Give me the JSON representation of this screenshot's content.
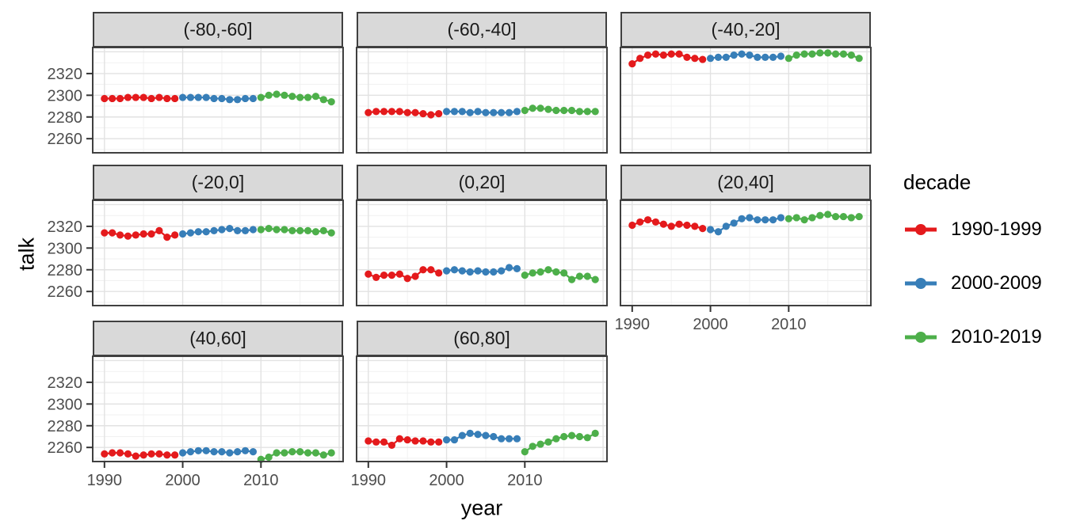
{
  "figure": {
    "y_axis_title": "talk",
    "x_axis_title": "year"
  },
  "legend": {
    "title": "decade",
    "entries": [
      {
        "label": "1990-1999",
        "color": "#e41a1c"
      },
      {
        "label": "2000-2009",
        "color": "#377eb8"
      },
      {
        "label": "2010-2019",
        "color": "#4daf4a"
      }
    ]
  },
  "chart_data": {
    "type": "line",
    "title": "",
    "xlabel": "year",
    "ylabel": "talk",
    "x_ticks": [
      1990,
      2000,
      2010
    ],
    "y_ticks": [
      2260,
      2280,
      2300,
      2320
    ],
    "x_range": [
      1988.5,
      2020.5
    ],
    "y_range": [
      2247,
      2344
    ],
    "grid": true,
    "legend_position": "right",
    "series_names": [
      "1990-1999",
      "2000-2009",
      "2010-2019"
    ],
    "series_colors": [
      "#e41a1c",
      "#377eb8",
      "#4daf4a"
    ],
    "series_start_years": [
      1990,
      2000,
      2010
    ],
    "facets": [
      {
        "label": "(-80,-60]",
        "series": [
          {
            "name": "1990-1999",
            "start_year": 1990,
            "values": [
              2297,
              2297,
              2297,
              2298,
              2298,
              2298,
              2297,
              2298,
              2297,
              2297
            ]
          },
          {
            "name": "2000-2009",
            "start_year": 2000,
            "values": [
              2298,
              2298,
              2298,
              2298,
              2297,
              2297,
              2296,
              2296,
              2297,
              2297
            ]
          },
          {
            "name": "2010-2019",
            "start_year": 2010,
            "values": [
              2298,
              2300,
              2301,
              2300,
              2299,
              2298,
              2298,
              2299,
              2296,
              2294
            ]
          }
        ]
      },
      {
        "label": "(-60,-40]",
        "series": [
          {
            "name": "1990-1999",
            "start_year": 1990,
            "values": [
              2284,
              2285,
              2285,
              2285,
              2285,
              2284,
              2284,
              2283,
              2282,
              2283
            ]
          },
          {
            "name": "2000-2009",
            "start_year": 2000,
            "values": [
              2285,
              2285,
              2285,
              2284,
              2285,
              2284,
              2284,
              2284,
              2284,
              2285
            ]
          },
          {
            "name": "2010-2019",
            "start_year": 2010,
            "values": [
              2286,
              2288,
              2288,
              2287,
              2286,
              2286,
              2286,
              2285,
              2285,
              2285
            ]
          }
        ]
      },
      {
        "label": "(-40,-20]",
        "series": [
          {
            "name": "1990-1999",
            "start_year": 1990,
            "values": [
              2329,
              2334,
              2337,
              2338,
              2337,
              2338,
              2338,
              2335,
              2334,
              2333
            ]
          },
          {
            "name": "2000-2009",
            "start_year": 2000,
            "values": [
              2334,
              2335,
              2335,
              2337,
              2338,
              2337,
              2335,
              2335,
              2335,
              2336
            ]
          },
          {
            "name": "2010-2019",
            "start_year": 2010,
            "values": [
              2334,
              2337,
              2338,
              2338,
              2339,
              2339,
              2338,
              2338,
              2337,
              2334
            ]
          }
        ]
      },
      {
        "label": "(-20,0]",
        "series": [
          {
            "name": "1990-1999",
            "start_year": 1990,
            "values": [
              2314,
              2314,
              2312,
              2311,
              2312,
              2313,
              2313,
              2316,
              2310,
              2312
            ]
          },
          {
            "name": "2000-2009",
            "start_year": 2000,
            "values": [
              2313,
              2314,
              2315,
              2315,
              2316,
              2317,
              2318,
              2316,
              2316,
              2317
            ]
          },
          {
            "name": "2010-2019",
            "start_year": 2010,
            "values": [
              2317,
              2318,
              2317,
              2317,
              2316,
              2316,
              2316,
              2315,
              2316,
              2314
            ]
          }
        ]
      },
      {
        "label": "(0,20]",
        "series": [
          {
            "name": "1990-1999",
            "start_year": 1990,
            "values": [
              2276,
              2273,
              2275,
              2275,
              2276,
              2272,
              2274,
              2280,
              2280,
              2277
            ]
          },
          {
            "name": "2000-2009",
            "start_year": 2000,
            "values": [
              2279,
              2280,
              2279,
              2278,
              2279,
              2278,
              2278,
              2279,
              2282,
              2281
            ]
          },
          {
            "name": "2010-2019",
            "start_year": 2010,
            "values": [
              2275,
              2277,
              2278,
              2280,
              2278,
              2277,
              2271,
              2274,
              2274,
              2271
            ]
          }
        ]
      },
      {
        "label": "(20,40]",
        "series": [
          {
            "name": "1990-1999",
            "start_year": 1990,
            "values": [
              2321,
              2324,
              2326,
              2324,
              2322,
              2320,
              2322,
              2321,
              2320,
              2318
            ]
          },
          {
            "name": "2000-2009",
            "start_year": 2000,
            "values": [
              2317,
              2315,
              2320,
              2323,
              2327,
              2328,
              2326,
              2326,
              2326,
              2328
            ]
          },
          {
            "name": "2010-2019",
            "start_year": 2010,
            "values": [
              2327,
              2328,
              2326,
              2328,
              2330,
              2331,
              2329,
              2329,
              2328,
              2329
            ]
          }
        ]
      },
      {
        "label": "(40,60]",
        "series": [
          {
            "name": "1990-1999",
            "start_year": 1990,
            "values": [
              2254,
              2255,
              2255,
              2254,
              2252,
              2253,
              2254,
              2254,
              2253,
              2253
            ]
          },
          {
            "name": "2000-2009",
            "start_year": 2000,
            "values": [
              2255,
              2256,
              2257,
              2257,
              2256,
              2256,
              2255,
              2256,
              2257,
              2256
            ]
          },
          {
            "name": "2010-2019",
            "start_year": 2010,
            "values": [
              2249,
              2251,
              2255,
              2255,
              2256,
              2256,
              2255,
              2255,
              2253,
              2255
            ]
          }
        ]
      },
      {
        "label": "(60,80]",
        "series": [
          {
            "name": "1990-1999",
            "start_year": 1990,
            "values": [
              2266,
              2265,
              2265,
              2262,
              2268,
              2267,
              2266,
              2266,
              2265,
              2265
            ]
          },
          {
            "name": "2000-2009",
            "start_year": 2000,
            "values": [
              2267,
              2267,
              2271,
              2273,
              2272,
              2271,
              2270,
              2268,
              2268,
              2268
            ]
          },
          {
            "name": "2010-2019",
            "start_year": 2010,
            "values": [
              2256,
              2261,
              2263,
              2265,
              2268,
              2270,
              2271,
              2270,
              2269,
              2273
            ]
          }
        ]
      }
    ]
  }
}
